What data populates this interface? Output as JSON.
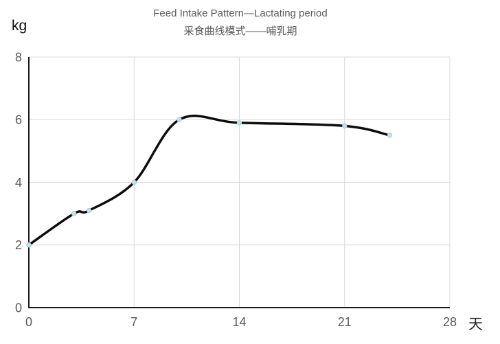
{
  "chart_data": {
    "type": "line",
    "title": "Feed Intake Pattern—Lactating period",
    "subtitle": "采食曲线模式——哺乳期",
    "xlabel": "天",
    "ylabel": "kg",
    "x": [
      0,
      3,
      4,
      7,
      10,
      14,
      21,
      24
    ],
    "y": [
      2,
      3,
      3.1,
      4,
      6,
      5.9,
      5.8,
      5.5
    ],
    "xlim": [
      0,
      28
    ],
    "ylim": [
      0,
      8
    ],
    "x_ticks": [
      0,
      7,
      14,
      21,
      28
    ],
    "y_ticks": [
      0,
      2,
      4,
      6,
      8
    ],
    "grid": true,
    "legend": false,
    "line_color": "#0d0d0d",
    "marker_fill": "#cde0e5",
    "marker_edge": "#a6c8d0",
    "grid_color": "#d9d9d9",
    "axis_color": "#1a1a1a",
    "tick_color": "#595959",
    "title_color": "#595959"
  }
}
